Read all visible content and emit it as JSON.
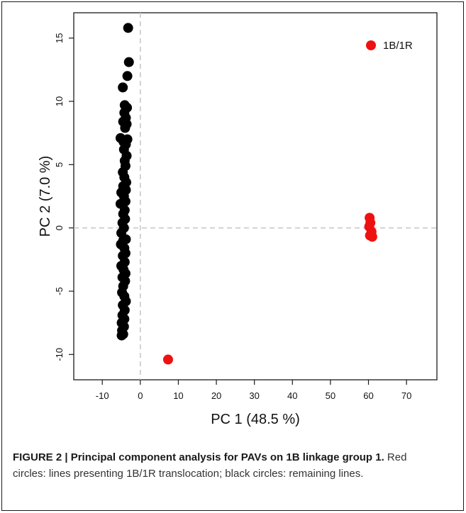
{
  "chart_data": {
    "type": "scatter",
    "title": "",
    "xlabel": "PC 1 (48.5 %)",
    "ylabel": "PC 2 (7.0 %)",
    "xlim": [
      -17.5,
      78
    ],
    "ylim": [
      -12,
      17
    ],
    "xticks": [
      -10,
      0,
      10,
      20,
      30,
      40,
      50,
      60,
      70
    ],
    "yticks": [
      -10,
      -5,
      0,
      5,
      10,
      15
    ],
    "reference_lines": {
      "x": 0,
      "y": 0,
      "style": "dashed"
    },
    "grid": false,
    "legend": {
      "position": "top-right",
      "entries": [
        {
          "label": "1B/1R",
          "color": "#ee1111"
        }
      ]
    },
    "series": [
      {
        "color": "#000000",
        "points": [
          [
            -3.2,
            15.8
          ],
          [
            -3.0,
            13.1
          ],
          [
            -3.4,
            12.0
          ],
          [
            -4.6,
            11.1
          ],
          [
            -4.1,
            9.7
          ],
          [
            -3.5,
            9.5
          ],
          [
            -4.2,
            9.1
          ],
          [
            -3.8,
            8.7
          ],
          [
            -4.5,
            8.4
          ],
          [
            -3.6,
            8.2
          ],
          [
            -4.0,
            7.9
          ],
          [
            -5.2,
            7.1
          ],
          [
            -3.4,
            7.0
          ],
          [
            -4.4,
            6.8
          ],
          [
            -3.8,
            6.6
          ],
          [
            -4.3,
            6.2
          ],
          [
            -3.6,
            5.7
          ],
          [
            -4.1,
            5.3
          ],
          [
            -3.9,
            4.9
          ],
          [
            -4.6,
            4.4
          ],
          [
            -4.2,
            4.0
          ],
          [
            -3.7,
            3.6
          ],
          [
            -4.5,
            3.3
          ],
          [
            -3.8,
            3.0
          ],
          [
            -5.0,
            2.8
          ],
          [
            -4.3,
            2.5
          ],
          [
            -3.9,
            2.1
          ],
          [
            -4.6,
            1.9
          ],
          [
            -5.2,
            1.9
          ],
          [
            -4.1,
            1.4
          ],
          [
            -4.5,
            1.1
          ],
          [
            -4.0,
            0.7
          ],
          [
            -4.7,
            0.4
          ],
          [
            -4.3,
            0.0
          ],
          [
            -5.0,
            -0.4
          ],
          [
            -3.8,
            -0.9
          ],
          [
            -4.5,
            -1.0
          ],
          [
            -5.1,
            -1.3
          ],
          [
            -4.2,
            -1.6
          ],
          [
            -3.9,
            -2.0
          ],
          [
            -4.6,
            -2.2
          ],
          [
            -4.1,
            -2.7
          ],
          [
            -5.0,
            -3.0
          ],
          [
            -4.4,
            -3.3
          ],
          [
            -3.9,
            -3.6
          ],
          [
            -4.7,
            -3.9
          ],
          [
            -4.0,
            -4.2
          ],
          [
            -4.5,
            -4.6
          ],
          [
            -4.8,
            -5.1
          ],
          [
            -4.2,
            -5.4
          ],
          [
            -3.8,
            -5.8
          ],
          [
            -4.6,
            -6.1
          ],
          [
            -4.1,
            -6.5
          ],
          [
            -4.7,
            -6.9
          ],
          [
            -4.2,
            -7.2
          ],
          [
            -4.9,
            -7.5
          ],
          [
            -4.3,
            -7.8
          ],
          [
            -4.8,
            -8.1
          ],
          [
            -4.5,
            -8.4
          ],
          [
            -4.9,
            -8.5
          ]
        ]
      },
      {
        "name": "1B/1R",
        "color": "#ee1111",
        "points": [
          [
            60.3,
            0.8
          ],
          [
            60.5,
            0.4
          ],
          [
            60.2,
            0.1
          ],
          [
            60.8,
            -0.3
          ],
          [
            60.4,
            -0.6
          ],
          [
            61.0,
            -0.7
          ],
          [
            7.3,
            -10.4
          ]
        ]
      }
    ]
  },
  "caption": {
    "bold": "FIGURE 2 | Principal component analysis for PAVs on 1B linkage group 1.",
    "text": " Red circles: lines presenting 1B/1R translocation; black circles: remaining lines."
  }
}
